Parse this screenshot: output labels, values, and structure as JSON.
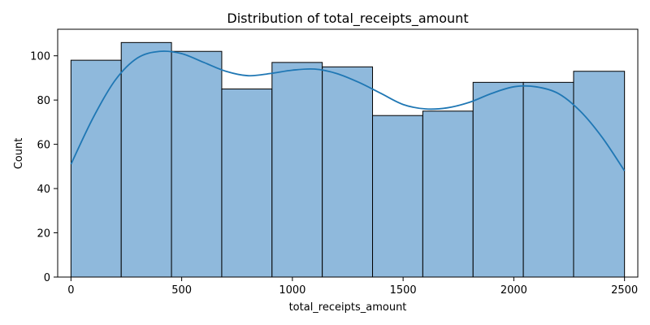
{
  "chart_data": {
    "type": "histogram",
    "title": "Distribution of total_receipts_amount",
    "xlabel": "total_receipts_amount",
    "ylabel": "Count",
    "xlim": [
      -60,
      2560
    ],
    "ylim": [
      0,
      112
    ],
    "xticks": [
      0,
      500,
      1000,
      1500,
      2000,
      2500
    ],
    "yticks": [
      0,
      20,
      40,
      60,
      80,
      100
    ],
    "bins": [
      {
        "start": 0,
        "end": 227,
        "count": 98
      },
      {
        "start": 227,
        "end": 454,
        "count": 106
      },
      {
        "start": 454,
        "end": 681,
        "count": 102
      },
      {
        "start": 681,
        "end": 908,
        "count": 85
      },
      {
        "start": 908,
        "end": 1135,
        "count": 97
      },
      {
        "start": 1135,
        "end": 1362,
        "count": 95
      },
      {
        "start": 1362,
        "end": 1589,
        "count": 73
      },
      {
        "start": 1589,
        "end": 1816,
        "count": 75
      },
      {
        "start": 1816,
        "end": 2043,
        "count": 88
      },
      {
        "start": 2043,
        "end": 2270,
        "count": 88
      },
      {
        "start": 2270,
        "end": 2500,
        "count": 93
      }
    ],
    "kde": {
      "x": [
        0,
        100,
        200,
        300,
        400,
        500,
        600,
        700,
        800,
        900,
        1000,
        1100,
        1200,
        1300,
        1400,
        1500,
        1600,
        1700,
        1800,
        1900,
        2000,
        2100,
        2200,
        2300,
        2400,
        2500
      ],
      "y": [
        51,
        72,
        89,
        99,
        102,
        101,
        97,
        93,
        91,
        92,
        93.5,
        94,
        92,
        88,
        83,
        78,
        76,
        76.5,
        79,
        83,
        86,
        86,
        83,
        75,
        63,
        48
      ]
    },
    "bar_color": "#8fb9dc",
    "bar_edge_color": "#000000",
    "kde_color": "#1f77b4",
    "grid": false,
    "legend": false
  }
}
